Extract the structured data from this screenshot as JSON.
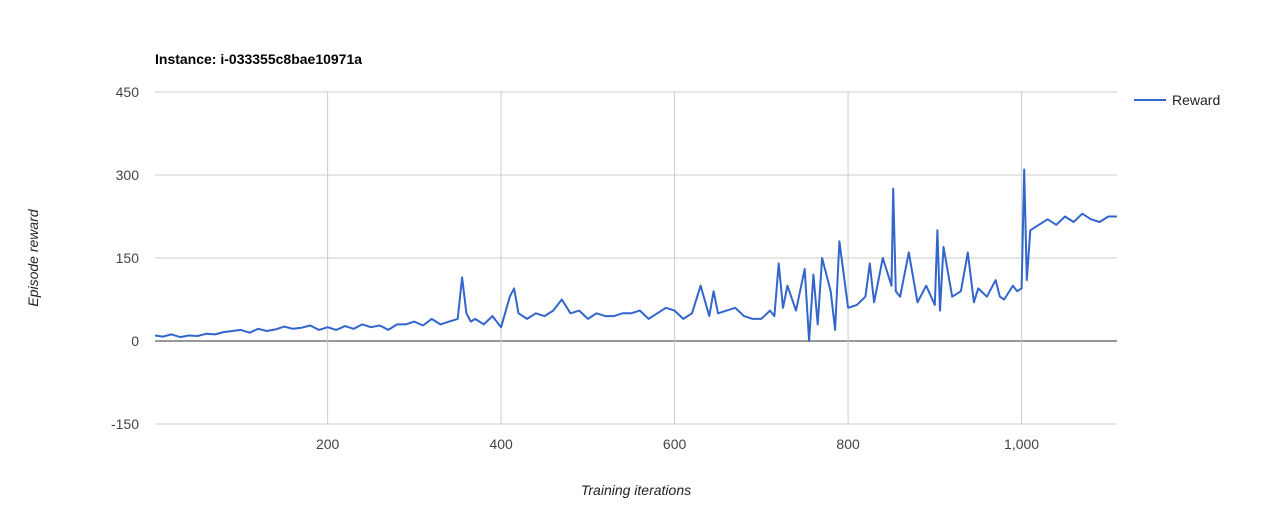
{
  "chart_data": {
    "type": "line",
    "title": "Instance: i-033355c8bae10971a",
    "xlabel": "Training iterations",
    "ylabel": "Episode reward",
    "xlim": [
      1,
      1110
    ],
    "ylim": [
      -150,
      450
    ],
    "x_ticks": [
      200,
      400,
      600,
      800,
      1000
    ],
    "x_tick_labels": [
      "200",
      "400",
      "600",
      "800",
      "1,000"
    ],
    "y_ticks": [
      -150,
      0,
      150,
      300,
      450
    ],
    "y_tick_labels": [
      "-150",
      "0",
      "150",
      "300",
      "450"
    ],
    "grid": true,
    "legend_position": "right",
    "colors": {
      "series": "#3366cc",
      "grid": "#cccccc",
      "baseline": "#333333"
    },
    "series": [
      {
        "name": "Reward",
        "x": [
          1,
          10,
          20,
          30,
          40,
          50,
          60,
          70,
          80,
          90,
          100,
          110,
          120,
          130,
          140,
          150,
          160,
          170,
          180,
          190,
          200,
          210,
          220,
          230,
          240,
          250,
          260,
          270,
          280,
          290,
          300,
          310,
          320,
          330,
          340,
          350,
          355,
          360,
          365,
          370,
          380,
          390,
          400,
          410,
          415,
          420,
          430,
          440,
          450,
          460,
          470,
          480,
          490,
          500,
          510,
          520,
          530,
          540,
          550,
          560,
          570,
          580,
          590,
          600,
          610,
          620,
          630,
          640,
          645,
          650,
          660,
          670,
          680,
          690,
          700,
          710,
          715,
          720,
          725,
          730,
          740,
          750,
          755,
          760,
          765,
          770,
          780,
          785,
          790,
          800,
          810,
          820,
          825,
          830,
          840,
          850,
          852,
          855,
          860,
          870,
          880,
          890,
          900,
          903,
          906,
          910,
          920,
          930,
          938,
          945,
          950,
          960,
          970,
          975,
          980,
          990,
          995,
          1000,
          1003,
          1006,
          1010,
          1020,
          1030,
          1040,
          1050,
          1060,
          1070,
          1080,
          1090,
          1100,
          1110
        ],
        "values": [
          10,
          8,
          12,
          7,
          10,
          9,
          13,
          12,
          16,
          18,
          20,
          15,
          22,
          18,
          21,
          26,
          22,
          24,
          28,
          20,
          25,
          20,
          27,
          22,
          30,
          25,
          28,
          20,
          30,
          30,
          35,
          28,
          40,
          30,
          35,
          40,
          115,
          50,
          35,
          40,
          30,
          45,
          25,
          80,
          95,
          50,
          40,
          50,
          45,
          55,
          75,
          50,
          55,
          40,
          50,
          45,
          45,
          50,
          50,
          55,
          40,
          50,
          60,
          55,
          40,
          50,
          100,
          45,
          90,
          50,
          55,
          60,
          45,
          40,
          40,
          55,
          45,
          140,
          60,
          100,
          55,
          130,
          0,
          120,
          30,
          150,
          90,
          20,
          180,
          60,
          65,
          80,
          140,
          70,
          150,
          100,
          275,
          90,
          80,
          160,
          70,
          100,
          65,
          200,
          55,
          170,
          80,
          90,
          160,
          70,
          95,
          80,
          110,
          80,
          75,
          100,
          90,
          95,
          310,
          110,
          200,
          210,
          220,
          210,
          225,
          215,
          230,
          220,
          215,
          225,
          225
        ]
      }
    ]
  }
}
